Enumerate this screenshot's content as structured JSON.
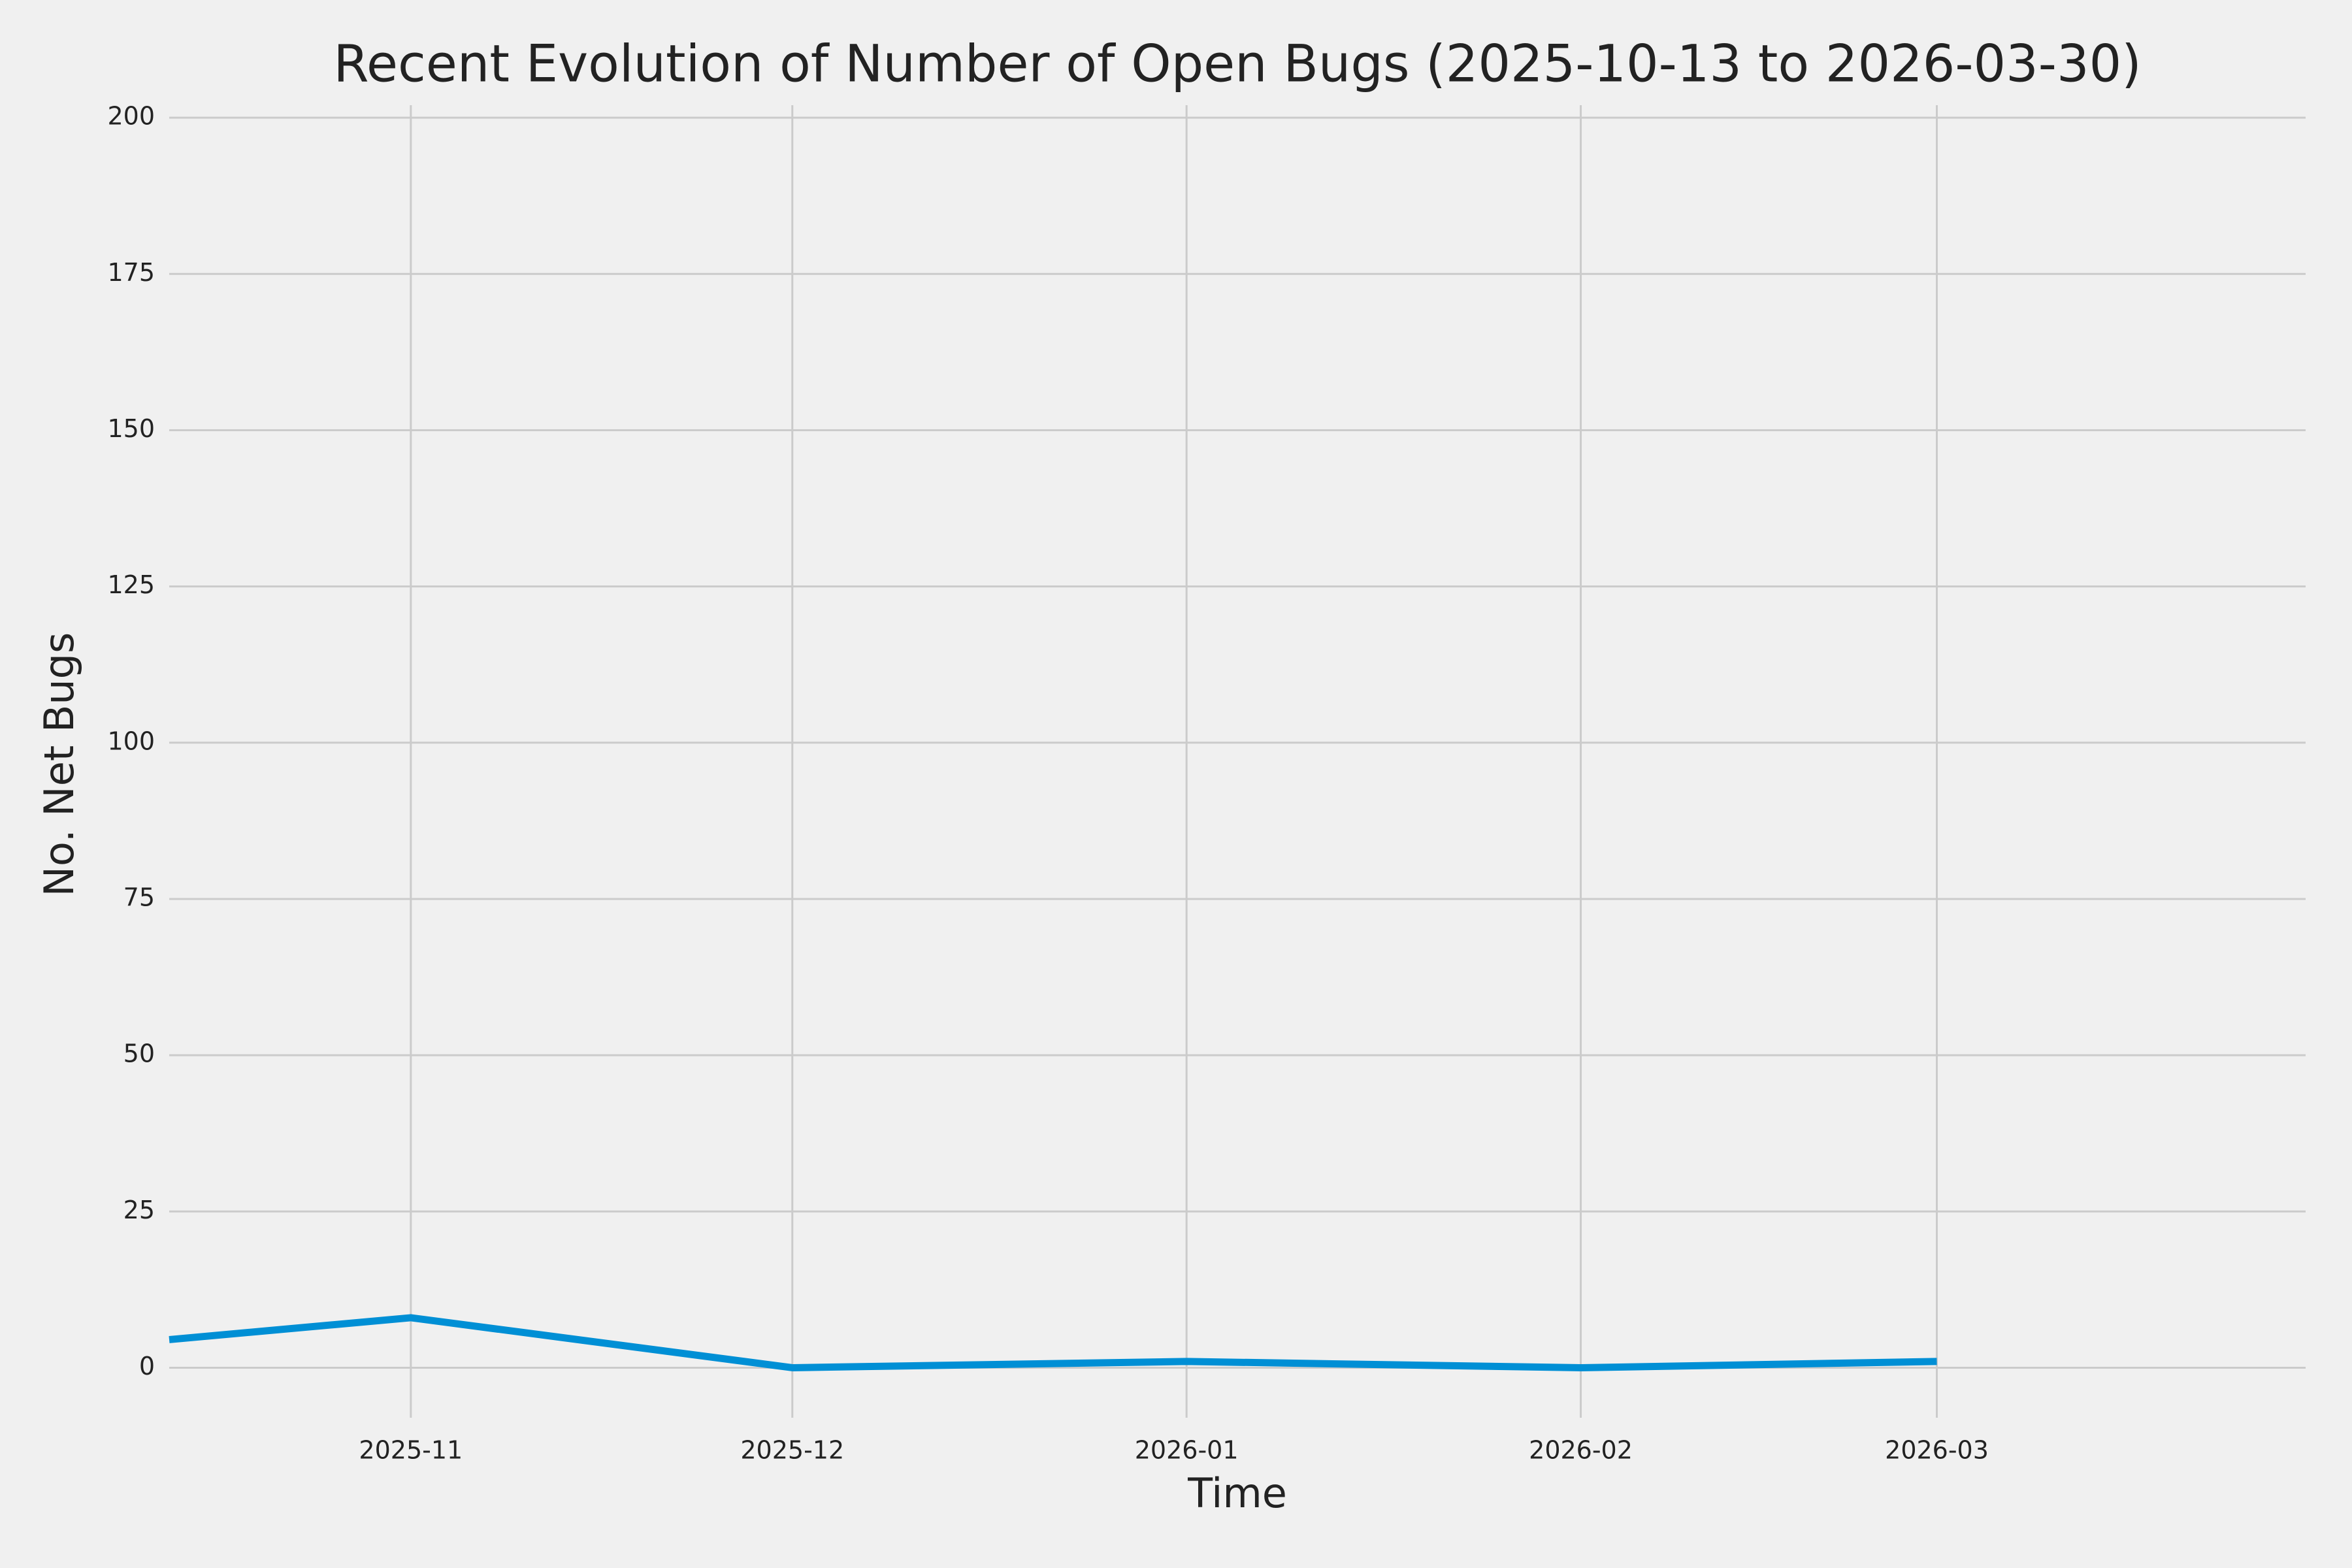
{
  "chart_data": {
    "type": "line",
    "title": "Recent Evolution of Number of Open Bugs (2025-10-13 to 2026-03-30)",
    "x_label": "Time",
    "y_label": "No. Net Bugs",
    "x": [
      "2025-10-13",
      "2025-11-01",
      "2025-12-01",
      "2026-01-01",
      "2026-02-01",
      "2026-03-01"
    ],
    "values": [
      4.5,
      8,
      0,
      1,
      0,
      1
    ],
    "color": "#008fd5",
    "xlim": [
      "2025-10-13",
      "2026-03-30"
    ],
    "xticks": [
      {
        "value": "2025-11-01",
        "label": "2025-11"
      },
      {
        "value": "2025-12-01",
        "label": "2025-12"
      },
      {
        "value": "2026-01-01",
        "label": "2026-01"
      },
      {
        "value": "2026-02-01",
        "label": "2026-02"
      },
      {
        "value": "2026-03-01",
        "label": "2026-03"
      }
    ],
    "ylim": [
      -8,
      202
    ],
    "yticks": [
      0,
      25,
      50,
      75,
      100,
      125,
      150,
      175,
      200
    ],
    "grid": true
  }
}
